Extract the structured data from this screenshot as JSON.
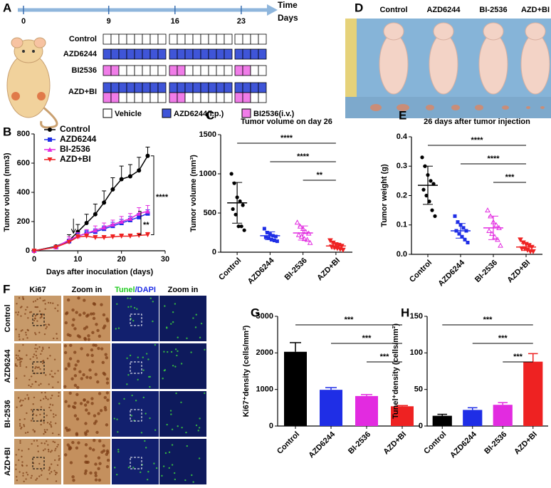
{
  "panel_letters": [
    "A",
    "B",
    "C",
    "D",
    "E",
    "F",
    "G",
    "H"
  ],
  "timeline": {
    "ticks": [
      0,
      9,
      16,
      23
    ],
    "label": [
      "Time",
      "Days"
    ]
  },
  "schedule": {
    "rows": [
      "Control",
      "AZD6244",
      "BI2536",
      "AZD+BI"
    ],
    "legend": [
      "Vehicle",
      "AZD6244(i.p.)",
      "BI2536(i.v.)"
    ]
  },
  "photo": {
    "labels": [
      {
        "text": "Control",
        "color": "#000000"
      },
      {
        "text": "AZD6244",
        "color": "#1f2ee6"
      },
      {
        "text": "BI-2536",
        "color": "#e22be0"
      },
      {
        "text": "AZD+BI",
        "color": "#ee2222"
      }
    ]
  },
  "histology": {
    "headers": [
      [
        {
          "text": "Ki67",
          "color": "#000000"
        }
      ],
      [
        {
          "text": "Zoom in",
          "color": "#000000"
        }
      ],
      [
        {
          "text": "Tunel",
          "color": "#22cc22"
        },
        {
          "text": "/DAPI",
          "color": "#1f2ee6"
        }
      ],
      [
        {
          "text": "Zoom in",
          "color": "#000000"
        }
      ]
    ],
    "rows": [
      {
        "text": "Control",
        "color": "#000000"
      },
      {
        "text": "AZD6244",
        "color": "#1f2ee6"
      },
      {
        "text": "BI-2536",
        "color": "#e22be0"
      },
      {
        "text": "AZD+BI",
        "color": "#ee2222"
      }
    ]
  },
  "chart_data": [
    {
      "type": "line",
      "xlabel": "Days after inoculation (days)",
      "ylabel": "Tumor volume (mm3)",
      "x": [
        0,
        5,
        8,
        10,
        12,
        14,
        16,
        18,
        20,
        22,
        24,
        26
      ],
      "xlim": [
        0,
        30
      ],
      "xticks": [
        0,
        10,
        20,
        30
      ],
      "ylim": [
        0,
        800
      ],
      "yticks": [
        0,
        200,
        400,
        600,
        800
      ],
      "series": [
        {
          "name": "Control",
          "color": "#000000",
          "marker": "circle",
          "values": [
            0,
            30,
            70,
            130,
            190,
            250,
            330,
            420,
            490,
            510,
            550,
            650
          ],
          "errors": [
            0,
            5,
            40,
            50,
            60,
            70,
            80,
            80,
            90,
            80,
            90,
            60
          ]
        },
        {
          "name": "AZD6244",
          "color": "#1f2ee6",
          "marker": "square",
          "values": [
            0,
            25,
            65,
            100,
            120,
            130,
            150,
            170,
            190,
            210,
            230,
            255
          ],
          "errors": [
            0,
            4,
            15,
            20,
            20,
            20,
            20,
            25,
            25,
            25,
            25,
            25
          ]
        },
        {
          "name": "BI-2536",
          "color": "#e22be0",
          "marker": "triangle",
          "values": [
            0,
            25,
            75,
            100,
            120,
            140,
            160,
            180,
            200,
            220,
            255,
            270
          ],
          "errors": [
            0,
            4,
            20,
            25,
            25,
            30,
            30,
            30,
            35,
            35,
            40,
            40
          ]
        },
        {
          "name": "AZD+BI",
          "color": "#ee2222",
          "marker": "tri-down",
          "values": [
            0,
            25,
            60,
            95,
            100,
            90,
            90,
            95,
            100,
            100,
            105,
            110
          ],
          "errors": [
            0,
            4,
            10,
            15,
            15,
            15,
            15,
            15,
            15,
            15,
            15,
            15
          ]
        }
      ],
      "comparisons": [
        {
          "label": "****",
          "between": [
            "Control",
            "AZD+BI"
          ]
        },
        {
          "label": "**",
          "between": [
            "BI-2536",
            "AZD+BI"
          ]
        }
      ]
    },
    {
      "type": "dot",
      "title": "Tumor volume on day 26",
      "ylabel": "Tumor  volume (mm³)",
      "categories": [
        "Control",
        "AZD6244",
        "BI-2536",
        "AZD+BI"
      ],
      "colors": [
        "#000000",
        "#1f2ee6",
        "#e22be0",
        "#ee2222"
      ],
      "ylim": [
        0,
        1500
      ],
      "yticks": [
        0,
        500,
        1000,
        1500
      ],
      "points": [
        [
          1000,
          880,
          700,
          650,
          600,
          550,
          480,
          330,
          330,
          280
        ],
        [
          300,
          250,
          230,
          210,
          200,
          190,
          180,
          160,
          150,
          140
        ],
        [
          380,
          330,
          300,
          260,
          240,
          220,
          200,
          170,
          160,
          120
        ],
        [
          150,
          120,
          100,
          90,
          80,
          70,
          60,
          50,
          40,
          30
        ]
      ],
      "means": [
        630,
        210,
        245,
        80
      ],
      "sd": [
        260,
        50,
        90,
        35
      ],
      "comparisons": [
        {
          "label": "****",
          "between": [
            "Control",
            "AZD+BI"
          ]
        },
        {
          "label": "****",
          "between": [
            "AZD6244",
            "AZD+BI"
          ]
        },
        {
          "label": "**",
          "between": [
            "BI-2536",
            "AZD+BI"
          ]
        }
      ]
    },
    {
      "type": "dot",
      "title": "26 days after tumor injection",
      "ylabel": "Tumor  weight (g)",
      "categories": [
        "Control",
        "AZD6244",
        "BI-2536",
        "AZD+BI"
      ],
      "colors": [
        "#000000",
        "#1f2ee6",
        "#e22be0",
        "#ee2222"
      ],
      "ylim": [
        0,
        0.4
      ],
      "yticks": [
        {
          "value": 0,
          "label": "0.0"
        },
        0.1,
        0.2,
        0.3,
        0.4
      ],
      "points": [
        [
          0.33,
          0.3,
          0.27,
          0.25,
          0.24,
          0.22,
          0.2,
          0.18,
          0.15,
          0.13
        ],
        [
          0.13,
          0.11,
          0.1,
          0.09,
          0.08,
          0.08,
          0.07,
          0.06,
          0.05,
          0.04
        ],
        [
          0.15,
          0.13,
          0.11,
          0.1,
          0.09,
          0.08,
          0.07,
          0.06,
          0.05,
          0.03
        ],
        [
          0.05,
          0.04,
          0.035,
          0.03,
          0.025,
          0.02,
          0.02,
          0.015,
          0.01,
          0.01
        ]
      ],
      "means": [
        0.235,
        0.08,
        0.09,
        0.025
      ],
      "sd": [
        0.065,
        0.025,
        0.04,
        0.012
      ],
      "comparisons": [
        {
          "label": "****",
          "between": [
            "Control",
            "AZD+BI"
          ]
        },
        {
          "label": "****",
          "between": [
            "AZD6244",
            "AZD+BI"
          ]
        },
        {
          "label": "***",
          "between": [
            "BI-2536",
            "AZD+BI"
          ]
        }
      ]
    },
    {
      "type": "bar",
      "ylabel": "Ki67⁺density (cells/mm²)",
      "categories": [
        "Control",
        "AZD6244",
        "BI-2536",
        "AZD+BI"
      ],
      "colors": [
        "#000000",
        "#1f2ee6",
        "#e22be0",
        "#ee2222"
      ],
      "ylim": [
        0,
        3000
      ],
      "yticks": [
        0,
        1000,
        2000,
        3000
      ],
      "values": [
        2030,
        990,
        820,
        540
      ],
      "errors": [
        250,
        60,
        40,
        20
      ],
      "comparisons": [
        {
          "label": "***",
          "between": [
            "Control",
            "AZD+BI"
          ]
        },
        {
          "label": "***",
          "between": [
            "AZD6244",
            "AZD+BI"
          ]
        },
        {
          "label": "***",
          "between": [
            "BI-2536",
            "AZD+BI"
          ]
        }
      ]
    },
    {
      "type": "bar",
      "ylabel": "Tunel⁺density (cells/mm²)",
      "categories": [
        "Control",
        "AZD6244",
        "BI-2536",
        "AZD+BI"
      ],
      "colors": [
        "#000000",
        "#1f2ee6",
        "#e22be0",
        "#ee2222"
      ],
      "ylim": [
        0,
        150
      ],
      "yticks": [
        0,
        50,
        100,
        150
      ],
      "values": [
        14,
        22,
        29,
        88
      ],
      "errors": [
        2,
        3,
        3,
        11
      ],
      "comparisons": [
        {
          "label": "***",
          "between": [
            "Control",
            "AZD+BI"
          ]
        },
        {
          "label": "***",
          "between": [
            "AZD6244",
            "AZD+BI"
          ]
        },
        {
          "label": "***",
          "between": [
            "BI-2536",
            "AZD+BI"
          ]
        }
      ]
    }
  ]
}
